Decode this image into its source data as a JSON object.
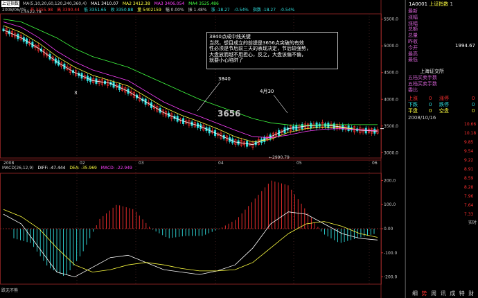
{
  "header": {
    "index_name": "上证指数",
    "ma_config": "MA(5,10,20,60,120,240,360,4)",
    "ma_values": [
      "MA1 3410.07",
      "MA2 3412.38",
      "MA3 3406.054",
      "MA4 3525.486"
    ],
    "line2": [
      "2008/06/05",
      "开 3355.98",
      "高 3390.44",
      "低 3351.65",
      "收 3350.88",
      "量 5402159",
      "幅 0.00%",
      "振 1.48%",
      "涨 -18.27",
      "-0.54%",
      "指数 -18.27",
      "-0.54%"
    ]
  },
  "macd_header": {
    "title": "MACD(26,12,9)",
    "diff": "DIFF: -47.444",
    "dea": "DEA: -35.969",
    "macd": "MACD: -22.949"
  },
  "annotations": {
    "box_lines": [
      "3840点成中线关键",
      "当然，想目成立的前提是3656点突破的有效",
      "性必须是节后前三天的表现决定，节后较强势，",
      "大盘放而越不用担心，反之，大盘该偏不偏，",
      "就要小心陷阱了"
    ],
    "label_3840": "3840",
    "label_apr30": "4月30",
    "label_3656": "3656",
    "label_3": "3",
    "peak_value": "5522.78",
    "low_value": "2990.79"
  },
  "x_axis": [
    "2008",
    "02",
    "03",
    "04",
    "05",
    "06"
  ],
  "y_axis_price": [
    "5500.0",
    "5000.0",
    "4500.0",
    "4000.0",
    "3500.0",
    "3000.0"
  ],
  "y_axis_macd": [
    "200.0",
    "100.0",
    "0.00",
    "-100.0",
    "-200.0"
  ],
  "right_panel": {
    "code": "1A0001",
    "name": "上证指数",
    "badge": "1",
    "menu": [
      "最新",
      "涨幅",
      "涨幅",
      "总额",
      "总量",
      "昨收",
      "今开",
      "最高",
      "最低"
    ],
    "value": "1994.67",
    "exchange": "上海证交所",
    "list": [
      "五档买卖手数",
      "五档买卖手数",
      "委比"
    ],
    "stats": [
      {
        "left": "上涨",
        "mid": "0",
        "right_label": "涨停",
        "right": "0"
      },
      {
        "left": "下跌",
        "mid": "0",
        "right_label": "跌停",
        "right": "0"
      },
      {
        "left": "平盘",
        "mid": "0",
        "right_label": "空盘",
        "right": "0"
      }
    ],
    "date": "2008/10/16",
    "right_scale": [
      "10.66",
      "10.18",
      "9.85",
      "9.54",
      "9.22",
      "8.91",
      "8.59",
      "8.28",
      "7.96",
      "7.64",
      "7.33"
    ],
    "side_label": "实时"
  },
  "bottom_tabs": [
    "细",
    "势",
    "周",
    "讯",
    "成",
    "特",
    "财"
  ],
  "bottom_label": "跌无不熊",
  "colors": {
    "up": "#ff3030",
    "down": "#30e0e0",
    "ma1": "#ffffff",
    "ma2": "#ffff40",
    "ma3": "#ff40ff",
    "ma4": "#40ff40",
    "accent": "#d060d0"
  },
  "chart_data": {
    "type": "candlestick",
    "x_range": [
      "2008",
      "06"
    ],
    "price_ylim": [
      2900,
      5600
    ],
    "macd_ylim": [
      -230,
      230
    ],
    "ma_price_path": {
      "ma5": [
        5300,
        5150,
        4950,
        4700,
        4500,
        4350,
        4300,
        4150,
        3950,
        3750,
        3600,
        3500,
        3350,
        3200,
        3150,
        3300,
        3450,
        3500,
        3520,
        3480,
        3420,
        3400
      ],
      "ma10": [
        5380,
        5250,
        5050,
        4800,
        4600,
        4450,
        4350,
        4250,
        4050,
        3850,
        3700,
        3580,
        3450,
        3300,
        3200,
        3250,
        3380,
        3450,
        3480,
        3470,
        3430,
        3410
      ],
      "ma20": [
        5450,
        5350,
        5150,
        4900,
        4700,
        4550,
        4450,
        4350,
        4150,
        3950,
        3800,
        3680,
        3550,
        3420,
        3300,
        3280,
        3330,
        3400,
        3440,
        3450,
        3430,
        3406
      ],
      "ma60": [
        5500,
        5450,
        5300,
        5150,
        4950,
        4800,
        4700,
        4600,
        4450,
        4300,
        4150,
        4000,
        3880,
        3760,
        3640,
        3560,
        3520,
        3510,
        3520,
        3525,
        3525,
        3525
      ]
    },
    "macd_diff": [
      60,
      20,
      -80,
      -180,
      -200,
      -160,
      -120,
      -110,
      -140,
      -170,
      -180,
      -190,
      -175,
      -150,
      -80,
      20,
      70,
      60,
      20,
      -20,
      -40,
      -47
    ],
    "macd_dea": [
      80,
      50,
      0,
      -80,
      -150,
      -180,
      -170,
      -150,
      -140,
      -150,
      -165,
      -175,
      -175,
      -170,
      -140,
      -80,
      -20,
      20,
      30,
      10,
      -20,
      -36
    ]
  }
}
